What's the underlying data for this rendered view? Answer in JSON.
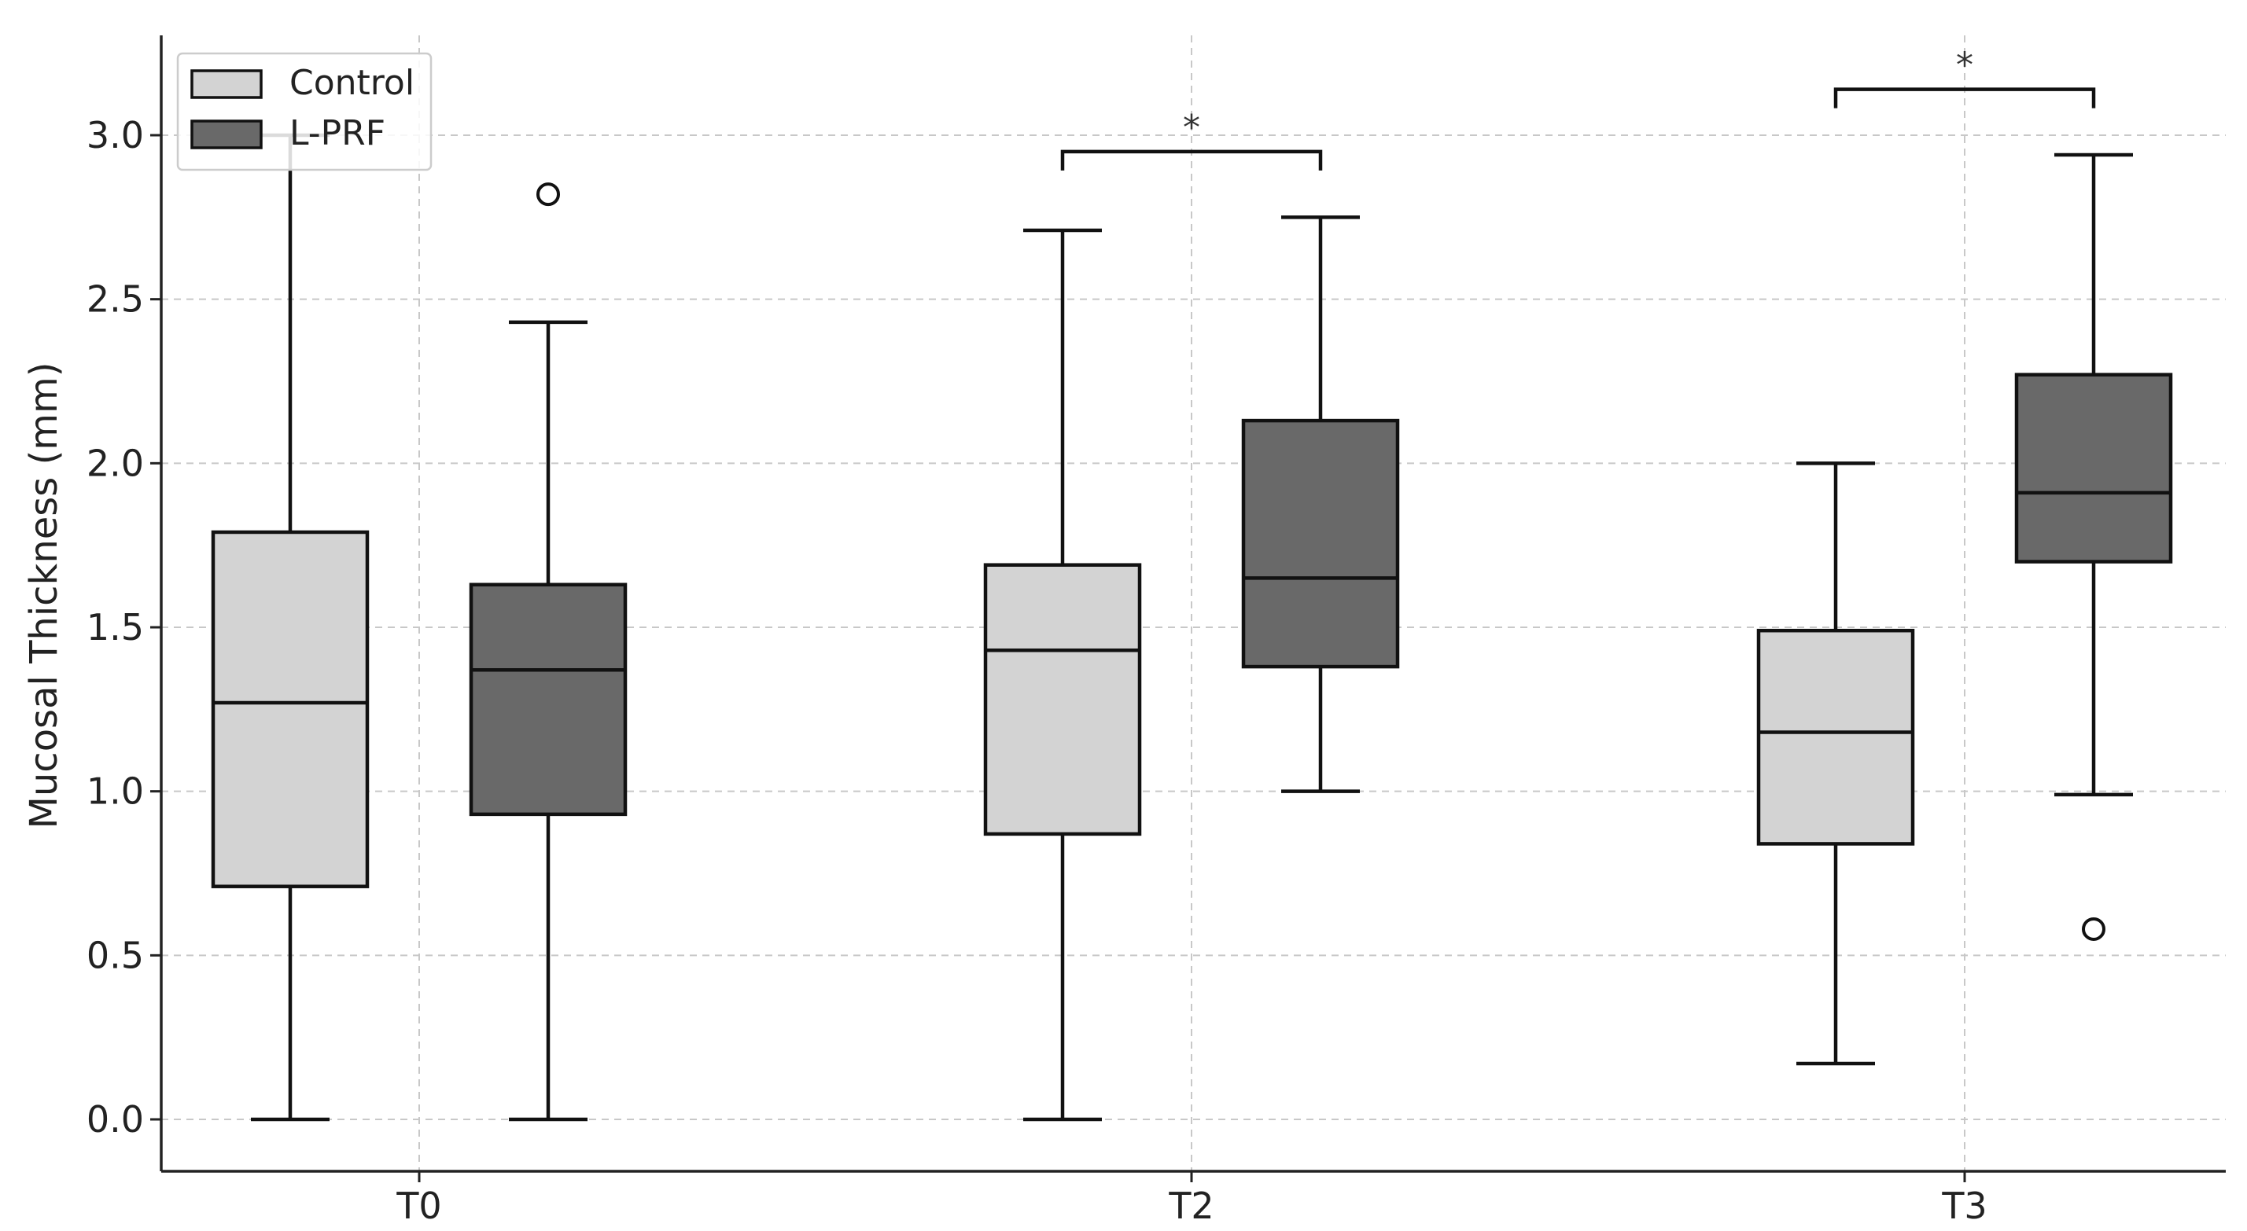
{
  "chart_data": {
    "type": "box",
    "title": "",
    "xlabel": "",
    "ylabel": "Mucosal Thickness (mm)",
    "ylim": [
      -0.15,
      3.3
    ],
    "yticks": [
      0.0,
      0.5,
      1.0,
      1.5,
      2.0,
      2.5,
      3.0
    ],
    "ytick_labels": [
      "0.0",
      "0.5",
      "1.0",
      "1.5",
      "2.0",
      "2.5",
      "3.0"
    ],
    "categories": [
      "T0",
      "T2",
      "T3"
    ],
    "grid": true,
    "legend_position": "top-left",
    "series": [
      {
        "name": "Control",
        "color": "#d3d3d3",
        "boxes": [
          {
            "whisker_low": 0.0,
            "q1": 0.71,
            "median": 1.27,
            "q3": 1.79,
            "whisker_high": 3.0,
            "fliers": []
          },
          {
            "whisker_low": 0.0,
            "q1": 0.87,
            "median": 1.43,
            "q3": 1.69,
            "whisker_high": 2.71,
            "fliers": []
          },
          {
            "whisker_low": 0.17,
            "q1": 0.84,
            "median": 1.18,
            "q3": 1.49,
            "whisker_high": 2.0,
            "fliers": []
          }
        ]
      },
      {
        "name": "L-PRF",
        "color": "#696969",
        "boxes": [
          {
            "whisker_low": 0.0,
            "q1": 0.93,
            "median": 1.37,
            "q3": 1.63,
            "whisker_high": 2.43,
            "fliers": [
              2.82
            ]
          },
          {
            "whisker_low": 1.0,
            "q1": 1.38,
            "median": 1.65,
            "q3": 2.13,
            "whisker_high": 2.75,
            "fliers": []
          },
          {
            "whisker_low": 0.99,
            "q1": 1.7,
            "median": 1.91,
            "q3": 2.27,
            "whisker_high": 2.94,
            "fliers": [
              0.58
            ]
          }
        ]
      }
    ],
    "significance": [
      {
        "category": "T2",
        "bracket_y": 2.95,
        "label": "*"
      },
      {
        "category": "T3",
        "bracket_y": 3.14,
        "label": "*"
      }
    ]
  }
}
